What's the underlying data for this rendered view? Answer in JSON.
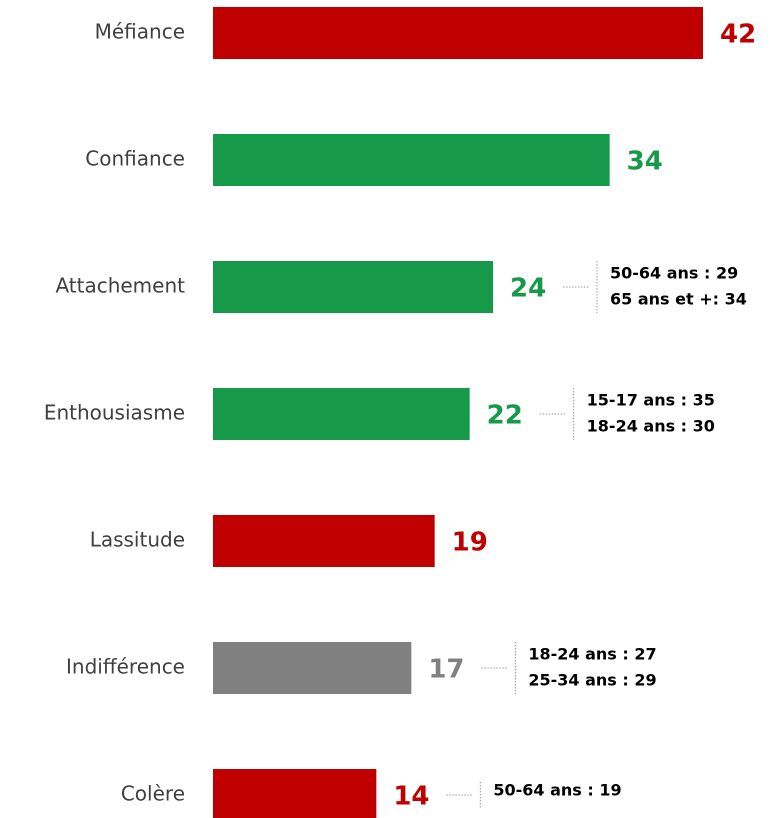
{
  "chart_data": {
    "type": "bar",
    "orientation": "horizontal",
    "categories": [
      "Méfiance",
      "Confiance",
      "Attachement",
      "Enthousiasme",
      "Lassitude",
      "Indifférence",
      "Colère"
    ],
    "values": [
      42,
      34,
      24,
      22,
      19,
      17,
      14
    ],
    "colors": [
      "#c00000",
      "#17994a",
      "#17994a",
      "#17994a",
      "#c00000",
      "#808080",
      "#c00000"
    ],
    "annotations": [
      [],
      [],
      [
        "50-64 ans : 29",
        "65 ans et +: 34"
      ],
      [
        "15-17 ans : 35",
        "18-24 ans : 30"
      ],
      [],
      [
        "18-24 ans : 27",
        "25-34 ans : 29"
      ],
      [
        "50-64 ans : 19"
      ]
    ]
  }
}
